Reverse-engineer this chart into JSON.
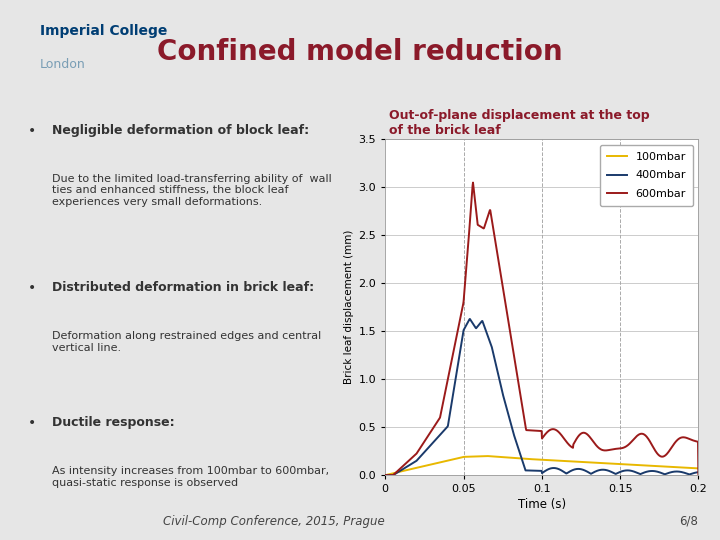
{
  "slide_bg": "#e6e6e6",
  "content_bg": "#ffffff",
  "header_bg": "#d4d4dc",
  "title_text": "Confined model reduction",
  "title_color": "#8b1a2a",
  "imperial_college": "Imperial College",
  "london": "London",
  "imperial_color": "#003e74",
  "london_color": "#7a9eb5",
  "footer_text": "Civil-Comp Conference, 2015, Prague",
  "footer_page": "6/8",
  "bullet1_bold": "Negligible deformation of block leaf:",
  "bullet1_text": "Due to the limited load-transferring ability of  wall\nties and enhanced stiffness, the block leaf\nexperiences very small deformations.",
  "bullet2_bold": "Distributed deformation in brick leaf:",
  "bullet2_text": "Deformation along restrained edges and central\nvertical line.",
  "bullet3_bold": "Ductile response:",
  "bullet3_text": "As intensity increases from 100mbar to 600mbar,\nquasi-static response is observed",
  "chart_title_line1": "Out-of-plane displacement at the top",
  "chart_title_line2": "of the brick leaf",
  "chart_title_color": "#8b1a2a",
  "ylabel": "Brick leaf displacement (mm)",
  "xlabel": "Time (s)",
  "ylim": [
    0,
    3.5
  ],
  "xlim": [
    0,
    0.2
  ],
  "yticks": [
    0,
    0.5,
    1.0,
    1.5,
    2.0,
    2.5,
    3.0,
    3.5
  ],
  "xticks": [
    0,
    0.05,
    0.1,
    0.15,
    0.2
  ],
  "xtick_labels": [
    "0",
    "0.05",
    "0.1",
    "0.15",
    "0.2"
  ],
  "vgrid_lines": [
    0.05,
    0.1,
    0.15,
    0.2
  ],
  "line_100_color": "#e8b800",
  "line_400_color": "#1a3a6b",
  "line_600_color": "#9b1a1a",
  "legend_labels": [
    "100mbar",
    "400mbar",
    "600mbar"
  ]
}
